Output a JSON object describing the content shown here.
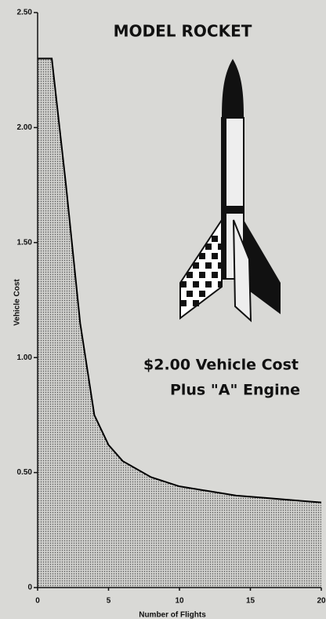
{
  "chart_data": {
    "type": "area",
    "title": "MODEL ROCKET",
    "annotations": [
      "$2.00 Vehicle Cost",
      "Plus \"A\" Engine"
    ],
    "x_label": "Number of Flights",
    "y_label": "Vehicle Cost",
    "x": [
      0,
      1,
      2,
      3,
      4,
      5,
      6,
      8,
      10,
      12,
      14,
      16,
      18,
      20
    ],
    "series": [
      {
        "color": "#000000",
        "values": [
          2.3,
          2.3,
          1.75,
          1.15,
          0.75,
          0.62,
          0.55,
          0.48,
          0.44,
          0.42,
          0.4,
          0.39,
          0.38,
          0.37
        ]
      }
    ],
    "xlim": [
      0,
      20
    ],
    "xticks": [
      0,
      5,
      10,
      15,
      20
    ],
    "ylim": [
      0,
      2.5
    ],
    "yticks": [
      0,
      {
        "value": 0.5,
        "label": "0.50"
      },
      {
        "value": 1,
        "label": "1.00"
      },
      {
        "value": 1.5,
        "label": "1.50"
      },
      {
        "value": 2,
        "label": "2.00"
      },
      {
        "value": 2.5,
        "label": "2.50"
      }
    ]
  }
}
